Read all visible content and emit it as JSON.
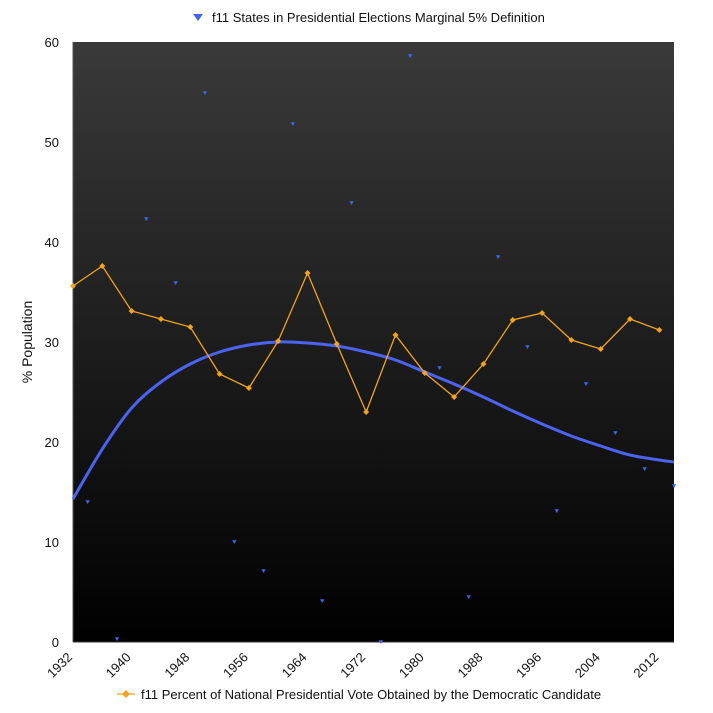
{
  "chart_data": {
    "type": "line",
    "legend_top": "f11 States in Presidential Elections Marginal 5% Definition",
    "legend_bottom": "f11 Percent of National Presidential Vote Obtained by the Democratic Candidate",
    "ylabel": "% Population",
    "xlabel": "",
    "xlim": [
      1932,
      2014
    ],
    "ylim": [
      0,
      60
    ],
    "x_ticks": [
      "1932",
      "1940",
      "1948",
      "1956",
      "1964",
      "1972",
      "1980",
      "1988",
      "1996",
      "2004",
      "2012"
    ],
    "y_ticks": [
      "0",
      "10",
      "20",
      "30",
      "40",
      "50",
      "60"
    ],
    "grid": false,
    "legend_placement": "top and bottom",
    "colors": {
      "marginal": "#3f66e8",
      "democratic": "#f2a31f",
      "trend": "#4b63f0",
      "background_top": "#3a3a3a",
      "background_bottom": "#000000"
    },
    "series": [
      {
        "name": "f11 States in Presidential Elections Marginal 5% Definition",
        "kind": "scatter",
        "points": [
          [
            1934,
            14.0
          ],
          [
            1938,
            0.3
          ],
          [
            1942,
            42.3
          ],
          [
            1946,
            35.9
          ],
          [
            1950,
            54.9
          ],
          [
            1954,
            10.0
          ],
          [
            1958,
            7.1
          ],
          [
            1962,
            51.8
          ],
          [
            1966,
            4.1
          ],
          [
            1970,
            43.9
          ],
          [
            1974,
            0.0
          ],
          [
            1978,
            58.6
          ],
          [
            1982,
            27.4
          ],
          [
            1986,
            4.5
          ],
          [
            1990,
            38.5
          ],
          [
            1994,
            29.5
          ],
          [
            1998,
            13.1
          ],
          [
            2002,
            25.8
          ],
          [
            2006,
            20.9
          ],
          [
            2010,
            17.3
          ],
          [
            2014,
            15.6
          ]
        ]
      },
      {
        "name": "f11 Percent of National Presidential Vote Obtained by the Democratic Candidate",
        "kind": "line",
        "points": [
          [
            1932,
            35.6
          ],
          [
            1936,
            37.6
          ],
          [
            1940,
            33.1
          ],
          [
            1944,
            32.3
          ],
          [
            1948,
            31.5
          ],
          [
            1952,
            26.8
          ],
          [
            1956,
            25.4
          ],
          [
            1960,
            30.1
          ],
          [
            1964,
            36.9
          ],
          [
            1968,
            29.8
          ],
          [
            1972,
            23.0
          ],
          [
            1976,
            30.7
          ],
          [
            1980,
            26.9
          ],
          [
            1984,
            24.5
          ],
          [
            1988,
            27.8
          ],
          [
            1992,
            32.2
          ],
          [
            1996,
            32.9
          ],
          [
            2000,
            30.2
          ],
          [
            2004,
            29.3
          ],
          [
            2008,
            32.3
          ],
          [
            2012,
            31.2
          ]
        ]
      },
      {
        "name": "",
        "kind": "trend",
        "points": [
          [
            1932,
            14.3
          ],
          [
            1936,
            19.3
          ],
          [
            1940,
            23.4
          ],
          [
            1944,
            26.0
          ],
          [
            1948,
            27.8
          ],
          [
            1952,
            29.0
          ],
          [
            1956,
            29.7
          ],
          [
            1960,
            30.0
          ],
          [
            1964,
            29.9
          ],
          [
            1968,
            29.6
          ],
          [
            1972,
            29.0
          ],
          [
            1976,
            28.2
          ],
          [
            1980,
            27.0
          ],
          [
            1984,
            25.8
          ],
          [
            1988,
            24.5
          ],
          [
            1992,
            23.1
          ],
          [
            1996,
            21.8
          ],
          [
            2000,
            20.6
          ],
          [
            2004,
            19.6
          ],
          [
            2008,
            18.7
          ],
          [
            2012,
            18.2
          ],
          [
            2014,
            18.0
          ]
        ]
      }
    ]
  }
}
